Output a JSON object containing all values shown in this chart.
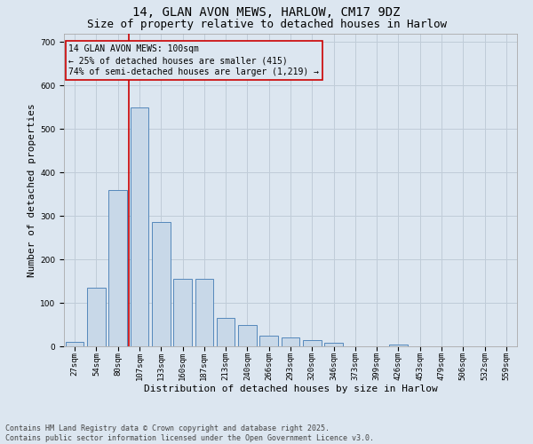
{
  "title_line1": "14, GLAN AVON MEWS, HARLOW, CM17 9DZ",
  "title_line2": "Size of property relative to detached houses in Harlow",
  "xlabel": "Distribution of detached houses by size in Harlow",
  "ylabel": "Number of detached properties",
  "categories": [
    "27sqm",
    "54sqm",
    "80sqm",
    "107sqm",
    "133sqm",
    "160sqm",
    "187sqm",
    "213sqm",
    "240sqm",
    "266sqm",
    "293sqm",
    "320sqm",
    "346sqm",
    "373sqm",
    "399sqm",
    "426sqm",
    "453sqm",
    "479sqm",
    "506sqm",
    "532sqm",
    "559sqm"
  ],
  "values": [
    10,
    135,
    360,
    550,
    285,
    155,
    155,
    65,
    50,
    25,
    20,
    15,
    8,
    0,
    0,
    5,
    0,
    0,
    0,
    0,
    0
  ],
  "bar_color": "#c8d8e8",
  "bar_edge_color": "#5588bb",
  "grid_color": "#c0ccd8",
  "background_color": "#dce6f0",
  "annotation_box_text": "14 GLAN AVON MEWS: 100sqm\n← 25% of detached houses are smaller (415)\n74% of semi-detached houses are larger (1,219) →",
  "vline_color": "#cc0000",
  "annotation_box_color": "#cc0000",
  "ylim": [
    0,
    720
  ],
  "yticks": [
    0,
    100,
    200,
    300,
    400,
    500,
    600,
    700
  ],
  "footer_text": "Contains HM Land Registry data © Crown copyright and database right 2025.\nContains public sector information licensed under the Open Government Licence v3.0.",
  "title_fontsize": 10,
  "subtitle_fontsize": 9,
  "tick_fontsize": 6.5,
  "label_fontsize": 8,
  "annotation_fontsize": 7,
  "footer_fontsize": 6
}
